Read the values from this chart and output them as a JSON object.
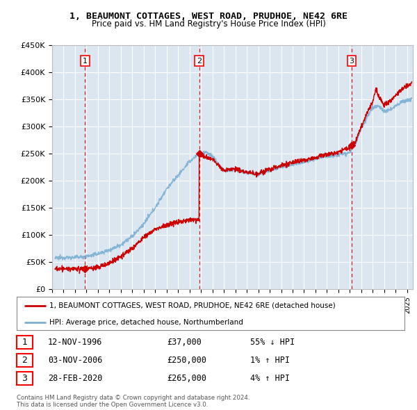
{
  "title": "1, BEAUMONT COTTAGES, WEST ROAD, PRUDHOE, NE42 6RE",
  "subtitle": "Price paid vs. HM Land Registry's House Price Index (HPI)",
  "ylabel_ticks": [
    "£0",
    "£50K",
    "£100K",
    "£150K",
    "£200K",
    "£250K",
    "£300K",
    "£350K",
    "£400K",
    "£450K"
  ],
  "ytick_values": [
    0,
    50000,
    100000,
    150000,
    200000,
    250000,
    300000,
    350000,
    400000,
    450000
  ],
  "ylim": [
    0,
    450000
  ],
  "xlim_start": 1994.25,
  "xlim_end": 2025.5,
  "sale_color": "#cc0000",
  "hpi_color": "#7bafd4",
  "sales": [
    {
      "year": 1996.87,
      "price": 37000,
      "label": "1"
    },
    {
      "year": 2006.84,
      "price": 250000,
      "label": "2"
    },
    {
      "year": 2020.16,
      "price": 265000,
      "label": "3"
    }
  ],
  "legend_sale_label": "1, BEAUMONT COTTAGES, WEST ROAD, PRUDHOE, NE42 6RE (detached house)",
  "legend_hpi_label": "HPI: Average price, detached house, Northumberland",
  "table_rows": [
    {
      "num": "1",
      "date": "12-NOV-1996",
      "price": "£37,000",
      "hpi": "55% ↓ HPI"
    },
    {
      "num": "2",
      "date": "03-NOV-2006",
      "price": "£250,000",
      "hpi": "1% ↑ HPI"
    },
    {
      "num": "3",
      "date": "28-FEB-2020",
      "price": "£265,000",
      "hpi": "4% ↑ HPI"
    }
  ],
  "footer": "Contains HM Land Registry data © Crown copyright and database right 2024.\nThis data is licensed under the Open Government Licence v3.0.",
  "bg_color": "#ffffff",
  "plot_bg_color": "#dce6f1",
  "grid_color": "#ffffff",
  "vline_color": "#cc0000",
  "hpi_anchors": [
    [
      1994.25,
      57000
    ],
    [
      1995.0,
      58000
    ],
    [
      1996.0,
      58500
    ],
    [
      1997.0,
      60000
    ],
    [
      1998.0,
      65000
    ],
    [
      1999.0,
      72000
    ],
    [
      2000.0,
      82000
    ],
    [
      2001.0,
      97000
    ],
    [
      2002.0,
      120000
    ],
    [
      2003.0,
      150000
    ],
    [
      2004.0,
      185000
    ],
    [
      2005.0,
      210000
    ],
    [
      2006.0,
      235000
    ],
    [
      2006.84,
      250000
    ],
    [
      2007.5,
      252000
    ],
    [
      2008.0,
      245000
    ],
    [
      2009.0,
      218000
    ],
    [
      2010.0,
      220000
    ],
    [
      2011.0,
      215000
    ],
    [
      2012.0,
      212000
    ],
    [
      2013.0,
      218000
    ],
    [
      2014.0,
      225000
    ],
    [
      2015.0,
      230000
    ],
    [
      2016.0,
      235000
    ],
    [
      2017.0,
      240000
    ],
    [
      2018.0,
      245000
    ],
    [
      2019.0,
      248000
    ],
    [
      2020.0,
      252000
    ],
    [
      2020.5,
      268000
    ],
    [
      2021.0,
      295000
    ],
    [
      2021.5,
      318000
    ],
    [
      2022.0,
      335000
    ],
    [
      2022.5,
      338000
    ],
    [
      2023.0,
      328000
    ],
    [
      2023.5,
      330000
    ],
    [
      2024.0,
      338000
    ],
    [
      2024.5,
      345000
    ],
    [
      2025.3,
      350000
    ]
  ],
  "sale_anchors": [
    [
      1994.25,
      37500
    ],
    [
      1995.0,
      37000
    ],
    [
      1996.0,
      37000
    ],
    [
      1996.87,
      37000
    ],
    [
      1997.0,
      37200
    ],
    [
      1998.0,
      40000
    ],
    [
      1999.0,
      48000
    ],
    [
      2000.0,
      60000
    ],
    [
      2001.0,
      75000
    ],
    [
      2002.0,
      95000
    ],
    [
      2003.0,
      110000
    ],
    [
      2004.0,
      118000
    ],
    [
      2005.0,
      124000
    ],
    [
      2006.0,
      128000
    ],
    [
      2006.83,
      128500
    ],
    [
      2006.84,
      250000
    ],
    [
      2007.0,
      248000
    ],
    [
      2007.5,
      242000
    ],
    [
      2008.0,
      240000
    ],
    [
      2009.0,
      218000
    ],
    [
      2010.0,
      222000
    ],
    [
      2011.0,
      215000
    ],
    [
      2012.0,
      213000
    ],
    [
      2013.0,
      220000
    ],
    [
      2014.0,
      228000
    ],
    [
      2015.0,
      233000
    ],
    [
      2016.0,
      238000
    ],
    [
      2017.0,
      243000
    ],
    [
      2018.0,
      248000
    ],
    [
      2019.0,
      252000
    ],
    [
      2019.5,
      257000
    ],
    [
      2020.0,
      260000
    ],
    [
      2020.16,
      265000
    ],
    [
      2020.5,
      272000
    ],
    [
      2021.0,
      300000
    ],
    [
      2021.5,
      325000
    ],
    [
      2022.0,
      345000
    ],
    [
      2022.3,
      370000
    ],
    [
      2022.5,
      355000
    ],
    [
      2023.0,
      340000
    ],
    [
      2023.5,
      345000
    ],
    [
      2024.0,
      358000
    ],
    [
      2024.5,
      368000
    ],
    [
      2025.3,
      378000
    ]
  ]
}
